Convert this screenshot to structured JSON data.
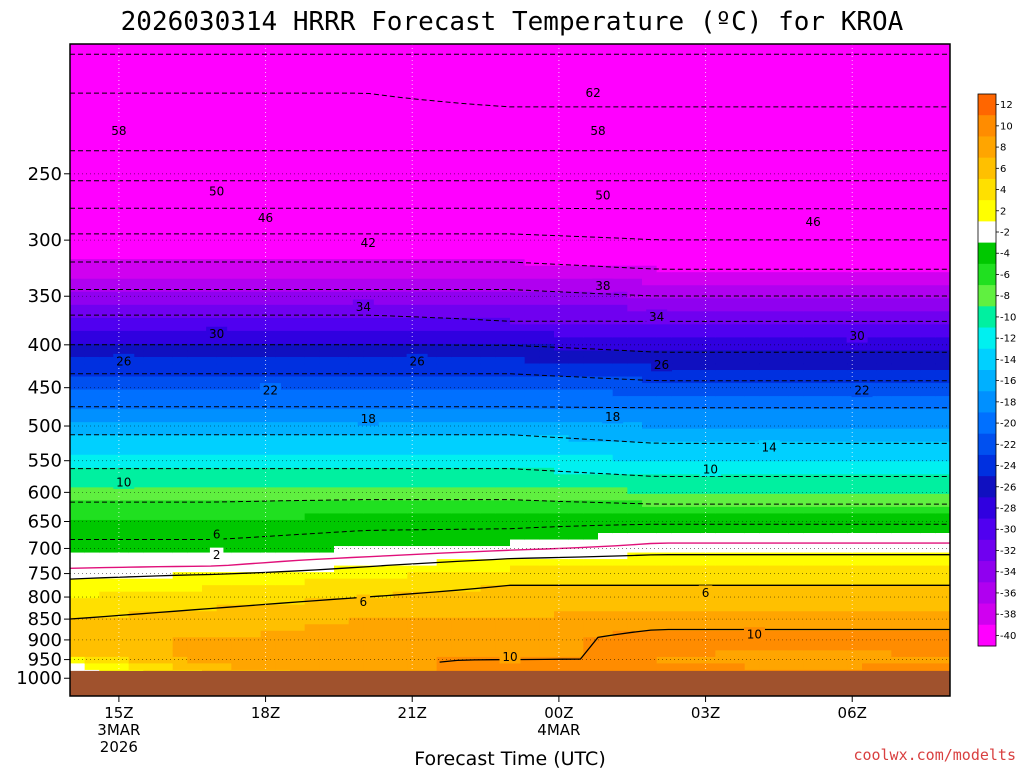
{
  "chart_data": {
    "type": "heatmap",
    "title": "2026030314 HRRR Forecast Temperature (ºC) for KROA",
    "xlabel": "Forecast Time (UTC)",
    "credit": "coolwx.com/modelts",
    "x_ticks": [
      {
        "hour": 15,
        "lines": [
          "15Z",
          "3MAR",
          "2026"
        ]
      },
      {
        "hour": 18,
        "lines": [
          "18Z"
        ]
      },
      {
        "hour": 21,
        "lines": [
          "21Z"
        ]
      },
      {
        "hour": 24,
        "lines": [
          "00Z",
          "4MAR"
        ]
      },
      {
        "hour": 27,
        "lines": [
          "03Z"
        ]
      },
      {
        "hour": 30,
        "lines": [
          "06Z"
        ]
      }
    ],
    "xlim_hours": [
      14,
      32
    ],
    "y_axis": {
      "scale": "log-pressure",
      "ylim": [
        1050,
        175
      ],
      "units": "hPa"
    },
    "y_ticks": [
      250,
      300,
      350,
      400,
      450,
      500,
      550,
      600,
      650,
      700,
      750,
      800,
      850,
      900,
      950,
      1000
    ],
    "ground": {
      "pressure": 980,
      "color": "#a0522d"
    },
    "colorbar": {
      "labels": [
        "12",
        "10",
        "8",
        "6",
        "4",
        "2",
        "-2",
        "-4",
        "-6",
        "-8",
        "-10",
        "-12",
        "-14",
        "-16",
        "-18",
        "-20",
        "-22",
        "-24",
        "-26",
        "-28",
        "-30",
        "-32",
        "-34",
        "-36",
        "-38",
        "-40"
      ],
      "colors": [
        "#ff6600",
        "#ff8c00",
        "#ffa500",
        "#ffc000",
        "#ffe000",
        "#ffff00",
        "#ffffff",
        "#00c800",
        "#20e020",
        "#60f040",
        "#00f0a0",
        "#00f0f0",
        "#00d0ff",
        "#00b0ff",
        "#0090ff",
        "#0070ff",
        "#0050f0",
        "#0030e0",
        "#1010c0",
        "#3000e0",
        "#5000f0",
        "#7000f0",
        "#9000f0",
        "#b000f0",
        "#d000f0",
        "#ff00ff"
      ]
    },
    "temperature_bands": [
      {
        "tmax": -40,
        "color": "#ff00ff"
      },
      {
        "tmax": -38,
        "color": "#d000f0"
      },
      {
        "tmax": -36,
        "color": "#b000f0"
      },
      {
        "tmax": -34,
        "color": "#9000f0"
      },
      {
        "tmax": -32,
        "color": "#7000f0"
      },
      {
        "tmax": -30,
        "color": "#5000f0"
      },
      {
        "tmax": -28,
        "color": "#3000e0"
      },
      {
        "tmax": -26,
        "color": "#1010c0"
      },
      {
        "tmax": -24,
        "color": "#0030e0"
      },
      {
        "tmax": -22,
        "color": "#0050f0"
      },
      {
        "tmax": -20,
        "color": "#0070ff"
      },
      {
        "tmax": -18,
        "color": "#0090ff"
      },
      {
        "tmax": -16,
        "color": "#00b0ff"
      },
      {
        "tmax": -14,
        "color": "#00d0ff"
      },
      {
        "tmax": -12,
        "color": "#00f0f0"
      },
      {
        "tmax": -10,
        "color": "#00f0a0"
      },
      {
        "tmax": -8,
        "color": "#60f040"
      },
      {
        "tmax": -6,
        "color": "#20e020"
      },
      {
        "tmax": -4,
        "color": "#00c800"
      },
      {
        "tmax": -2,
        "color": "#00c800"
      },
      {
        "tmax": 2,
        "color": "#ffffff"
      },
      {
        "tmax": 4,
        "color": "#ffff00"
      },
      {
        "tmax": 6,
        "color": "#ffe000"
      },
      {
        "tmax": 8,
        "color": "#ffc000"
      },
      {
        "tmax": 10,
        "color": "#ffa500"
      },
      {
        "tmax": 12,
        "color": "#ff8c00"
      },
      {
        "tmax": 99,
        "color": "#ff6600"
      }
    ],
    "profiles": [
      {
        "hour": 14,
        "levels": [
          [
            180,
            -64
          ],
          [
            200,
            -60
          ],
          [
            225,
            -58
          ],
          [
            250,
            -53
          ],
          [
            275,
            -48
          ],
          [
            300,
            -43
          ],
          [
            325,
            -39
          ],
          [
            350,
            -35
          ],
          [
            375,
            -31
          ],
          [
            400,
            -28
          ],
          [
            425,
            -25
          ],
          [
            450,
            -22
          ],
          [
            475,
            -20
          ],
          [
            500,
            -17
          ],
          [
            550,
            -13
          ],
          [
            600,
            -9
          ],
          [
            650,
            -6
          ],
          [
            700,
            -3
          ],
          [
            740,
            0
          ],
          [
            760,
            2
          ],
          [
            800,
            4
          ],
          [
            850,
            6
          ],
          [
            900,
            8
          ],
          [
            940,
            6
          ],
          [
            960,
            2
          ],
          [
            1000,
            0
          ]
        ]
      },
      {
        "hour": 17,
        "levels": [
          [
            180,
            -64
          ],
          [
            200,
            -60
          ],
          [
            225,
            -58
          ],
          [
            250,
            -53
          ],
          [
            275,
            -48
          ],
          [
            300,
            -43
          ],
          [
            325,
            -39
          ],
          [
            350,
            -35
          ],
          [
            375,
            -31
          ],
          [
            400,
            -28
          ],
          [
            425,
            -25
          ],
          [
            450,
            -22
          ],
          [
            475,
            -20
          ],
          [
            500,
            -17
          ],
          [
            550,
            -13
          ],
          [
            600,
            -9
          ],
          [
            650,
            -6
          ],
          [
            700,
            -3
          ],
          [
            735,
            0
          ],
          [
            760,
            3
          ],
          [
            800,
            5
          ],
          [
            850,
            7
          ],
          [
            900,
            8
          ],
          [
            950,
            9
          ],
          [
            1000,
            6
          ]
        ]
      },
      {
        "hour": 20,
        "levels": [
          [
            180,
            -64
          ],
          [
            200,
            -60
          ],
          [
            225,
            -58
          ],
          [
            250,
            -53
          ],
          [
            275,
            -48
          ],
          [
            300,
            -43
          ],
          [
            325,
            -39
          ],
          [
            350,
            -35
          ],
          [
            375,
            -31
          ],
          [
            400,
            -28
          ],
          [
            425,
            -25
          ],
          [
            450,
            -22
          ],
          [
            475,
            -20
          ],
          [
            500,
            -17
          ],
          [
            550,
            -13
          ],
          [
            600,
            -9
          ],
          [
            650,
            -5
          ],
          [
            700,
            -2
          ],
          [
            725,
            1
          ],
          [
            760,
            4
          ],
          [
            800,
            6
          ],
          [
            850,
            8
          ],
          [
            900,
            9
          ],
          [
            950,
            10
          ],
          [
            1000,
            9
          ]
        ]
      },
      {
        "hour": 23,
        "levels": [
          [
            180,
            -64
          ],
          [
            200,
            -61
          ],
          [
            225,
            -58
          ],
          [
            250,
            -53
          ],
          [
            275,
            -48
          ],
          [
            300,
            -43
          ],
          [
            325,
            -39
          ],
          [
            350,
            -35
          ],
          [
            375,
            -32
          ],
          [
            400,
            -28
          ],
          [
            425,
            -25
          ],
          [
            450,
            -22
          ],
          [
            475,
            -20
          ],
          [
            500,
            -17
          ],
          [
            550,
            -13
          ],
          [
            600,
            -9
          ],
          [
            650,
            -5
          ],
          [
            690,
            -2
          ],
          [
            710,
            1
          ],
          [
            750,
            5
          ],
          [
            800,
            7
          ],
          [
            850,
            8
          ],
          [
            900,
            9
          ],
          [
            950,
            10
          ],
          [
            1000,
            11
          ]
        ]
      },
      {
        "hour": 26,
        "levels": [
          [
            180,
            -64
          ],
          [
            200,
            -61
          ],
          [
            225,
            -58
          ],
          [
            250,
            -53
          ],
          [
            275,
            -48
          ],
          [
            300,
            -44
          ],
          [
            325,
            -40
          ],
          [
            350,
            -36
          ],
          [
            375,
            -32
          ],
          [
            400,
            -29
          ],
          [
            425,
            -26
          ],
          [
            450,
            -23
          ],
          [
            475,
            -20
          ],
          [
            500,
            -18
          ],
          [
            550,
            -14
          ],
          [
            600,
            -10
          ],
          [
            640,
            -6
          ],
          [
            670,
            -2
          ],
          [
            700,
            1
          ],
          [
            750,
            5
          ],
          [
            800,
            7
          ],
          [
            850,
            9
          ],
          [
            900,
            11
          ],
          [
            950,
            10
          ],
          [
            1000,
            11
          ]
        ]
      },
      {
        "hour": 29,
        "levels": [
          [
            180,
            -64
          ],
          [
            200,
            -61
          ],
          [
            225,
            -58
          ],
          [
            250,
            -53
          ],
          [
            275,
            -48
          ],
          [
            300,
            -44
          ],
          [
            325,
            -40
          ],
          [
            350,
            -36
          ],
          [
            375,
            -32
          ],
          [
            400,
            -29
          ],
          [
            425,
            -26
          ],
          [
            450,
            -23
          ],
          [
            475,
            -20
          ],
          [
            500,
            -18
          ],
          [
            550,
            -14
          ],
          [
            600,
            -10
          ],
          [
            640,
            -6
          ],
          [
            670,
            -2
          ],
          [
            700,
            1
          ],
          [
            750,
            5
          ],
          [
            800,
            7
          ],
          [
            850,
            9
          ],
          [
            900,
            11
          ],
          [
            950,
            9
          ],
          [
            1000,
            11
          ]
        ]
      },
      {
        "hour": 32,
        "levels": [
          [
            180,
            -64
          ],
          [
            200,
            -61
          ],
          [
            225,
            -58
          ],
          [
            250,
            -53
          ],
          [
            275,
            -48
          ],
          [
            300,
            -44
          ],
          [
            325,
            -40
          ],
          [
            350,
            -36
          ],
          [
            375,
            -32
          ],
          [
            400,
            -29
          ],
          [
            425,
            -26
          ],
          [
            450,
            -23
          ],
          [
            475,
            -20
          ],
          [
            500,
            -18
          ],
          [
            550,
            -14
          ],
          [
            600,
            -10
          ],
          [
            640,
            -6
          ],
          [
            670,
            -2
          ],
          [
            700,
            1
          ],
          [
            750,
            5
          ],
          [
            800,
            7
          ],
          [
            850,
            9
          ],
          [
            900,
            11
          ],
          [
            950,
            10
          ],
          [
            1000,
            11
          ]
        ]
      }
    ],
    "contour_labels": [
      {
        "text": "62",
        "hour": 24.7,
        "p": 200
      },
      {
        "text": "58",
        "hour": 15.0,
        "p": 222
      },
      {
        "text": "58",
        "hour": 24.8,
        "p": 222
      },
      {
        "text": "50",
        "hour": 17.0,
        "p": 262
      },
      {
        "text": "50",
        "hour": 24.9,
        "p": 265
      },
      {
        "text": "46",
        "hour": 18.0,
        "p": 282
      },
      {
        "text": "46",
        "hour": 29.2,
        "p": 285
      },
      {
        "text": "42",
        "hour": 20.1,
        "p": 302
      },
      {
        "text": "38",
        "hour": 24.9,
        "p": 340
      },
      {
        "text": "34",
        "hour": 20.0,
        "p": 360
      },
      {
        "text": "34",
        "hour": 26.0,
        "p": 370
      },
      {
        "text": "30",
        "hour": 17.0,
        "p": 388
      },
      {
        "text": "30",
        "hour": 30.1,
        "p": 390
      },
      {
        "text": "26",
        "hour": 15.1,
        "p": 418
      },
      {
        "text": "26",
        "hour": 21.1,
        "p": 418
      },
      {
        "text": "26",
        "hour": 26.1,
        "p": 422
      },
      {
        "text": "22",
        "hour": 18.1,
        "p": 453
      },
      {
        "text": "22",
        "hour": 30.2,
        "p": 453
      },
      {
        "text": "18",
        "hour": 20.1,
        "p": 490
      },
      {
        "text": "18",
        "hour": 25.1,
        "p": 487
      },
      {
        "text": "14",
        "hour": 28.3,
        "p": 530
      },
      {
        "text": "10",
        "hour": 15.1,
        "p": 583
      },
      {
        "text": "10",
        "hour": 27.1,
        "p": 563
      },
      {
        "text": "6",
        "hour": 17.0,
        "p": 673
      },
      {
        "text": "2",
        "hour": 17.0,
        "p": 712
      },
      {
        "text": "6",
        "hour": 20.0,
        "p": 810
      },
      {
        "text": "6",
        "hour": 27.0,
        "p": 790
      },
      {
        "text": "10",
        "hour": 28.0,
        "p": 886
      },
      {
        "text": "10",
        "hour": 23.0,
        "p": 942
      }
    ]
  }
}
